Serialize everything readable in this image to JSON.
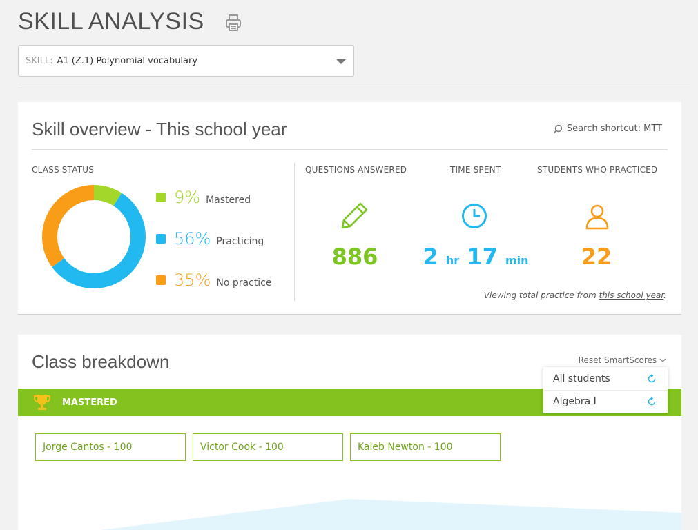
{
  "page": {
    "title": "SKILL ANALYSIS"
  },
  "skill_select": {
    "label": "SKILL:",
    "value": "A1 (Z.1)  Polynomial vocabulary"
  },
  "overview": {
    "title": "Skill overview - This school year",
    "search_shortcut_label": "Search shortcut: MTT",
    "class_status": {
      "label": "CLASS STATUS",
      "items": [
        {
          "pct": "9%",
          "label": "Mastered",
          "value": 9,
          "color": "#a3d82b"
        },
        {
          "pct": "56%",
          "label": "Practicing",
          "value": 56,
          "color": "#21b9f0"
        },
        {
          "pct": "35%",
          "label": "No practice",
          "value": 35,
          "color": "#f99d19"
        }
      ]
    },
    "stats": {
      "questions": {
        "label": "QUESTIONS ANSWERED",
        "value": "886",
        "color": "#7cc522",
        "icon": "pencil-icon"
      },
      "time": {
        "label": "TIME SPENT",
        "hours": "2",
        "hours_unit": "hr",
        "minutes": "17",
        "minutes_unit": "min",
        "color": "#21b9f0",
        "icon": "clock-icon"
      },
      "students": {
        "label": "STUDENTS WHO PRACTICED",
        "value": "22",
        "color": "#f99d19",
        "icon": "person-icon"
      }
    },
    "note_prefix": "Viewing total practice from ",
    "note_link": "this school year",
    "note_suffix": "."
  },
  "breakdown": {
    "title": "Class breakdown",
    "reset_label": "Reset SmartScores",
    "mastered_label": "MASTERED",
    "students": [
      "Jorge Cantos - 100",
      "Victor Cook - 100",
      "Kaleb Newton - 100"
    ]
  },
  "reset_dropdown": {
    "items": [
      "All students",
      "Algebra I"
    ]
  }
}
